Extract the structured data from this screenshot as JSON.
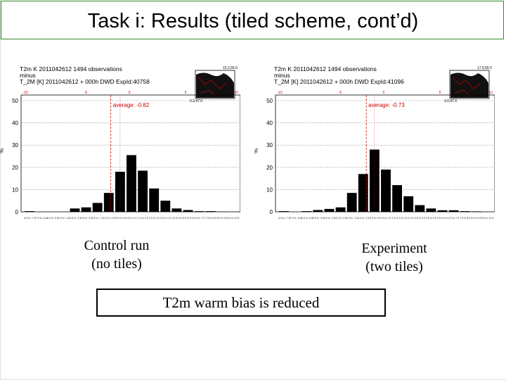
{
  "slide": {
    "title": "Task i: Results (tiled scheme, cont’d)",
    "caption_left_line1": "Control run",
    "caption_left_line2": "(no tiles)",
    "caption_right_line1": "Experiment",
    "caption_right_line2": "(two tiles)",
    "conclusion": "T2m warm bias is reduced"
  },
  "chart_data": [
    {
      "type": "bar",
      "header": {
        "line1": "T2m K  2011042612    1494 observations",
        "line2": "minus",
        "line3": "T_2M [K]  2011042612 + 000h  DWD ExpId:40758"
      },
      "average_label": "average: -0.82",
      "average": -0.82,
      "ylabel": "%",
      "ylim": [
        0,
        50
      ],
      "yticks": [
        0,
        10,
        20,
        30,
        40,
        50
      ],
      "top_ticks": [
        "-10",
        "-5",
        "0",
        "5",
        "10"
      ],
      "map_labels": [
        "15.2,55.0",
        "0.3,47.0"
      ],
      "colors": {
        "bar": "#000000",
        "average_line": "#cc0000",
        "grid": "#777777"
      },
      "categories": [
        "-8.5 to -7.5",
        "-7.5 to -6.5",
        "-6.5 to -5.5",
        "-5.5 to -4.5",
        "-4.5 to -3.5",
        "-3.5 to -2.5",
        "-2.5 to -1.5",
        "-1.5 to -0.5",
        "-0.5 to 0.5",
        "0.5 to 1.5",
        "1.5 to 2.5",
        "2.5 to 3.5",
        "3.5 to 4.5",
        "4.5 to 5.5",
        "5.5 to 6.5",
        "6.5 to 7.5",
        "7.5 to 8.5",
        "8.5 to 9.5",
        "9.5 to 10.5"
      ],
      "values": [
        0.3,
        0,
        0,
        0,
        1.5,
        2,
        4,
        8.5,
        18,
        25.5,
        18.5,
        10.5,
        5,
        1.5,
        0.8,
        0.3,
        0.3,
        0.1,
        0
      ]
    },
    {
      "type": "bar",
      "header": {
        "line1": "T2m K  2011042612    1494 observations",
        "line2": "minus",
        "line3": "T_2M [K]  2011042612 + 000h  DWD ExpId:41096"
      },
      "average_label": "average: -0.73",
      "average": -0.73,
      "ylabel": "%",
      "ylim": [
        0,
        50
      ],
      "yticks": [
        0,
        10,
        20,
        30,
        40,
        50
      ],
      "top_ticks": [
        "-10",
        "-5",
        "0",
        "5",
        "10"
      ],
      "map_labels": [
        "17.0,55.0",
        "3.0,47.0"
      ],
      "colors": {
        "bar": "#000000",
        "average_line": "#cc0000",
        "grid": "#777777"
      },
      "categories": [
        "-8.5 to -7.5",
        "-7.5 to -6.5",
        "-6.5 to -5.5",
        "-5.5 to -4.5",
        "-4.5 to -3.5",
        "-3.5 to -2.5",
        "-2.5 to -1.5",
        "-1.5 to -0.5",
        "-0.5 to 0.5",
        "0.5 to 1.5",
        "1.5 to 2.5",
        "2.5 to 3.5",
        "3.5 to 4.5",
        "4.5 to 5.5",
        "5.5 to 6.5",
        "6.5 to 7.5",
        "7.5 to 8.5",
        "8.5 to 9.5",
        "9.5 to 10.5"
      ],
      "values": [
        0.3,
        0,
        0.3,
        0.8,
        1.3,
        2,
        8.5,
        17,
        28,
        19,
        12,
        7,
        3,
        1.5,
        0.7,
        0.7,
        0.3,
        0.2,
        0
      ]
    }
  ]
}
